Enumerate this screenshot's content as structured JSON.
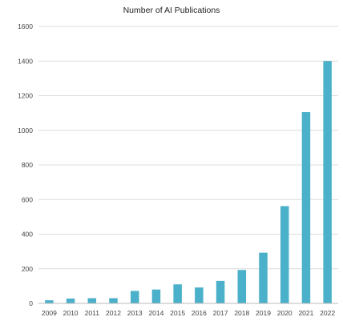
{
  "chart_data": {
    "type": "bar",
    "title": "Number of AI Publications",
    "xlabel": "",
    "ylabel": "",
    "categories": [
      "2009",
      "2010",
      "2011",
      "2012",
      "2013",
      "2014",
      "2015",
      "2016",
      "2017",
      "2018",
      "2019",
      "2020",
      "2021",
      "2022"
    ],
    "values": [
      18,
      28,
      30,
      30,
      72,
      80,
      110,
      92,
      130,
      193,
      293,
      562,
      1105,
      1400
    ],
    "ylim": [
      0,
      1600
    ],
    "yticks": [
      "0",
      "200",
      "400",
      "600",
      "800",
      "1000",
      "1200",
      "1400",
      "1600"
    ],
    "grid": "horizontal",
    "legend": "none",
    "colors": {
      "bar": "#4bb0c9",
      "grid": "#dcdcdc",
      "axis": "#bbbbbb"
    }
  }
}
